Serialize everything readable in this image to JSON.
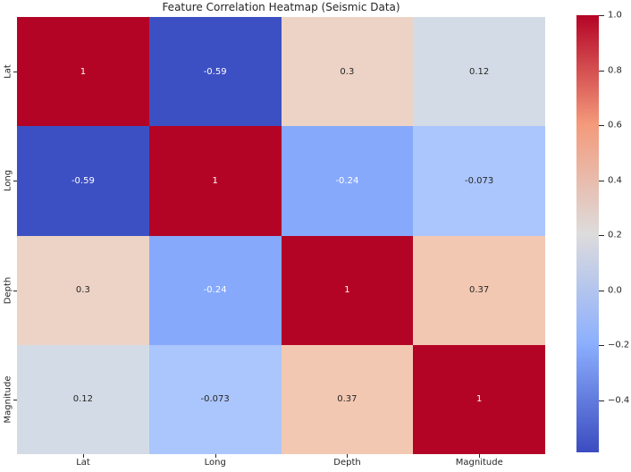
{
  "chart_data": {
    "type": "heatmap",
    "title": "Feature Correlation Heatmap (Seismic Data)",
    "categories": [
      "Lat",
      "Long",
      "Depth",
      "Magnitude"
    ],
    "matrix": [
      [
        1,
        -0.59,
        0.3,
        0.12
      ],
      [
        -0.59,
        1,
        -0.24,
        -0.073
      ],
      [
        0.3,
        -0.24,
        1,
        0.37
      ],
      [
        0.12,
        -0.073,
        0.37,
        1
      ]
    ],
    "cell_labels": [
      [
        "1",
        "-0.59",
        "0.3",
        "0.12"
      ],
      [
        "-0.59",
        "1",
        "-0.24",
        "-0.073"
      ],
      [
        "0.3",
        "-0.24",
        "1",
        "0.37"
      ],
      [
        "0.12",
        "-0.073",
        "0.37",
        "1"
      ]
    ],
    "cell_colors": [
      [
        "#b40426",
        "#3d50c3",
        "#ecd3c5",
        "#d3dce6"
      ],
      [
        "#3d50c3",
        "#b40426",
        "#86a9fc",
        "#abc6fd"
      ],
      [
        "#ecd3c5",
        "#86a9fc",
        "#b40426",
        "#f3c8b2"
      ],
      [
        "#d3dce6",
        "#abc6fd",
        "#f3c8b2",
        "#b40426"
      ]
    ],
    "cell_text_colors": [
      [
        "#ffffff",
        "#ffffff",
        "#262626",
        "#262626"
      ],
      [
        "#ffffff",
        "#ffffff",
        "#ffffff",
        "#262626"
      ],
      [
        "#262626",
        "#ffffff",
        "#ffffff",
        "#262626"
      ],
      [
        "#262626",
        "#262626",
        "#262626",
        "#ffffff"
      ]
    ],
    "colormap": "coolwarm",
    "vmin": -0.59,
    "vmax": 1.0,
    "grid": false,
    "colorbar": {
      "position": "right",
      "gradient_stops": [
        {
          "color": "#b40426",
          "pos": 0
        },
        {
          "color": "#f49a7b",
          "pos": 25
        },
        {
          "color": "#dddcdc",
          "pos": 50
        },
        {
          "color": "#8caffe",
          "pos": 75
        },
        {
          "color": "#3b4cc0",
          "pos": 100
        }
      ],
      "ticks": [
        {
          "label": "1.0",
          "value": 1.0
        },
        {
          "label": "0.8",
          "value": 0.8
        },
        {
          "label": "0.6",
          "value": 0.6
        },
        {
          "label": "0.4",
          "value": 0.4
        },
        {
          "label": "0.2",
          "value": 0.2
        },
        {
          "label": "0.0",
          "value": 0.0
        },
        {
          "label": "−0.2",
          "value": -0.2
        },
        {
          "label": "−0.4",
          "value": -0.4
        }
      ]
    }
  }
}
